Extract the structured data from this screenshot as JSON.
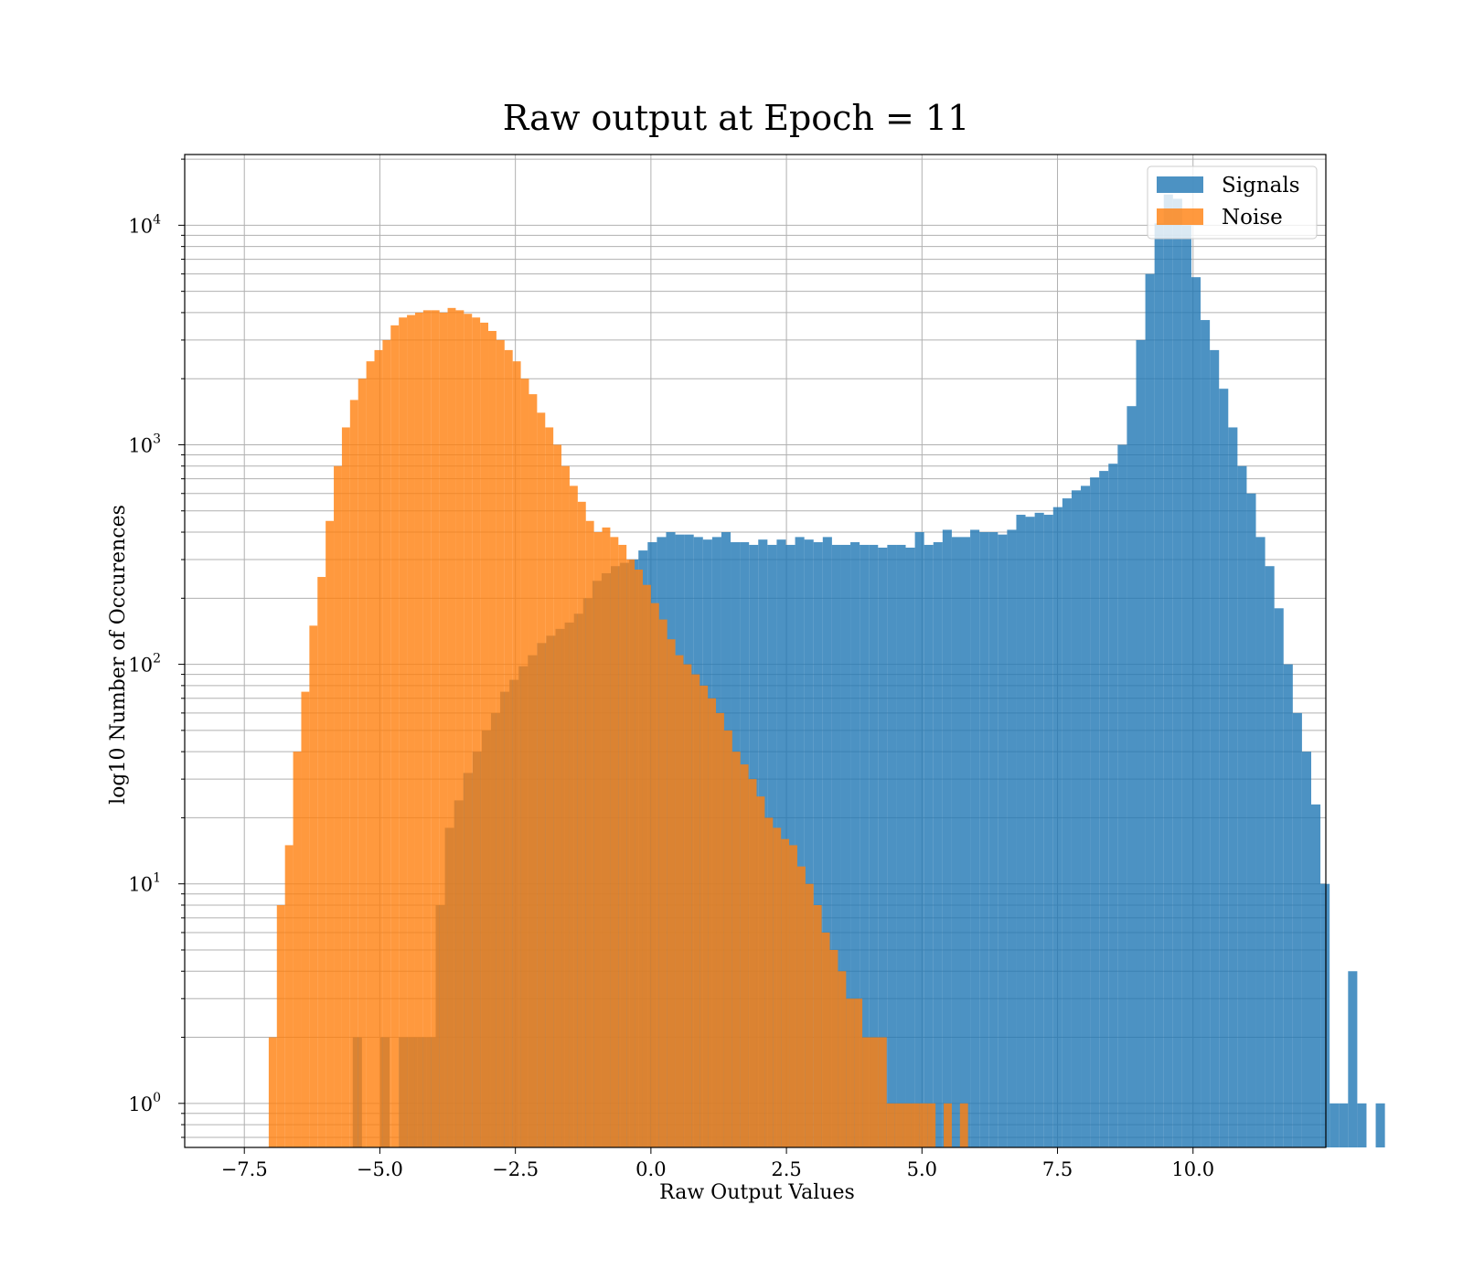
{
  "chart_data": {
    "type": "bar",
    "title": "Raw output at Epoch = 11",
    "xlabel": "Raw Output Values",
    "ylabel": "log10 Number of Occurences",
    "yscale": "log",
    "xlim": [
      -8.6,
      12.45
    ],
    "ylim": [
      0.63,
      21000
    ],
    "xticks": [
      -7.5,
      -5.0,
      -2.5,
      0.0,
      2.5,
      5.0,
      7.5,
      10.0
    ],
    "xtick_labels": [
      "−7.5",
      "−5.0",
      "−2.5",
      "0.0",
      "2.5",
      "5.0",
      "7.5",
      "10.0"
    ],
    "yticks": [
      1,
      10,
      100,
      1000,
      10000
    ],
    "ytick_labels": [
      {
        "base": "10",
        "exp": "0"
      },
      {
        "base": "10",
        "exp": "1"
      },
      {
        "base": "10",
        "exp": "2"
      },
      {
        "base": "10",
        "exp": "3"
      },
      {
        "base": "10",
        "exp": "4"
      }
    ],
    "grid": true,
    "legend_position": "top-right",
    "series": [
      {
        "name": "Signals",
        "color": "#1f77b4",
        "opacity": 0.8,
        "bin_start": -5.5,
        "bin_width": 0.17,
        "counts": [
          2,
          0,
          0,
          2,
          0,
          2,
          2,
          2,
          2,
          8,
          18,
          24,
          32,
          40,
          50,
          60,
          75,
          85,
          98,
          110,
          125,
          135,
          145,
          155,
          170,
          200,
          240,
          260,
          280,
          290,
          300,
          330,
          360,
          380,
          400,
          390,
          390,
          380,
          370,
          380,
          400,
          360,
          360,
          350,
          370,
          350,
          370,
          350,
          380,
          370,
          360,
          380,
          350,
          350,
          360,
          350,
          350,
          340,
          350,
          350,
          340,
          400,
          350,
          360,
          410,
          380,
          380,
          410,
          400,
          400,
          390,
          410,
          480,
          470,
          490,
          480,
          520,
          570,
          620,
          650,
          710,
          760,
          820,
          1000,
          1500,
          3000,
          6000,
          10200,
          13800,
          13200,
          10000,
          5800,
          3700,
          2700,
          1800,
          1200,
          800,
          600,
          380,
          280,
          180,
          100,
          60,
          40,
          23,
          10,
          1,
          1,
          4,
          1,
          0,
          1
        ]
      },
      {
        "name": "Noise",
        "color": "#ff7f0e",
        "opacity": 0.8,
        "bin_start": -7.05,
        "bin_width": 0.15,
        "counts": [
          2,
          8,
          15,
          40,
          75,
          150,
          250,
          450,
          800,
          1200,
          1600,
          2000,
          2400,
          2700,
          3000,
          3500,
          3800,
          3900,
          4000,
          4100,
          4100,
          4000,
          4200,
          4100,
          3950,
          3800,
          3600,
          3300,
          3000,
          2700,
          2400,
          2000,
          1700,
          1400,
          1200,
          1000,
          800,
          650,
          550,
          450,
          400,
          420,
          380,
          350,
          300,
          270,
          230,
          190,
          160,
          130,
          110,
          100,
          90,
          80,
          70,
          60,
          50,
          40,
          35,
          30,
          25,
          20,
          18,
          16,
          15,
          12,
          10,
          8,
          6,
          5,
          4,
          3,
          3,
          2,
          2,
          2,
          1,
          1,
          1,
          1,
          1,
          1,
          0,
          1,
          0,
          1
        ]
      }
    ]
  }
}
